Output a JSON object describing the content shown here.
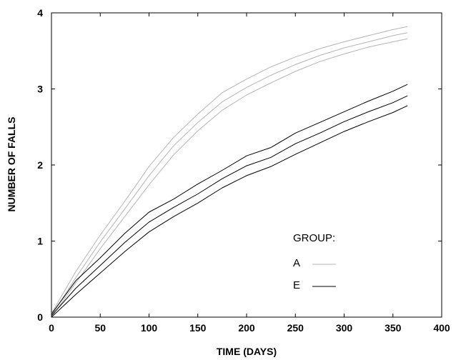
{
  "chart_data": {
    "type": "line",
    "title": "",
    "xlabel": "TIME  (DAYS)",
    "ylabel": "NUMBER OF FALLS",
    "xlim": [
      0,
      400
    ],
    "ylim": [
      0,
      4
    ],
    "xticks": [
      0,
      50,
      100,
      150,
      200,
      250,
      300,
      350,
      400
    ],
    "yticks": [
      0,
      1,
      2,
      3,
      4
    ],
    "grid": false,
    "legend": {
      "title": "GROUP:",
      "placement": "lower-right",
      "entries": [
        {
          "label": "A",
          "color": "#b4b4b4"
        },
        {
          "label": "E",
          "color": "#000000"
        }
      ]
    },
    "x": [
      0,
      25,
      50,
      75,
      100,
      125,
      150,
      175,
      200,
      225,
      250,
      275,
      300,
      325,
      350,
      365
    ],
    "series": [
      {
        "group": "A",
        "role": "upper",
        "color": "#b4b4b4",
        "values": [
          0.05,
          0.6,
          1.08,
          1.52,
          1.98,
          2.36,
          2.67,
          2.95,
          3.13,
          3.29,
          3.42,
          3.53,
          3.62,
          3.7,
          3.78,
          3.82
        ]
      },
      {
        "group": "A",
        "role": "mid",
        "color": "#b4b4b4",
        "values": [
          0.02,
          0.52,
          0.99,
          1.42,
          1.86,
          2.25,
          2.56,
          2.83,
          3.02,
          3.18,
          3.32,
          3.44,
          3.54,
          3.62,
          3.7,
          3.74
        ]
      },
      {
        "group": "A",
        "role": "lower",
        "color": "#b4b4b4",
        "values": [
          0.0,
          0.45,
          0.9,
          1.32,
          1.74,
          2.13,
          2.45,
          2.72,
          2.92,
          3.08,
          3.23,
          3.36,
          3.46,
          3.55,
          3.62,
          3.66
        ]
      },
      {
        "group": "E",
        "role": "upper",
        "color": "#000000",
        "values": [
          0.04,
          0.48,
          0.78,
          1.1,
          1.38,
          1.55,
          1.75,
          1.93,
          2.12,
          2.23,
          2.42,
          2.56,
          2.7,
          2.84,
          2.97,
          3.06
        ]
      },
      {
        "group": "E",
        "role": "mid",
        "color": "#000000",
        "values": [
          0.02,
          0.38,
          0.68,
          0.98,
          1.25,
          1.44,
          1.62,
          1.82,
          1.99,
          2.1,
          2.28,
          2.42,
          2.57,
          2.7,
          2.82,
          2.91
        ]
      },
      {
        "group": "E",
        "role": "lower",
        "color": "#000000",
        "values": [
          0.0,
          0.3,
          0.58,
          0.86,
          1.12,
          1.32,
          1.5,
          1.7,
          1.86,
          1.98,
          2.14,
          2.29,
          2.44,
          2.57,
          2.69,
          2.78
        ]
      }
    ]
  }
}
